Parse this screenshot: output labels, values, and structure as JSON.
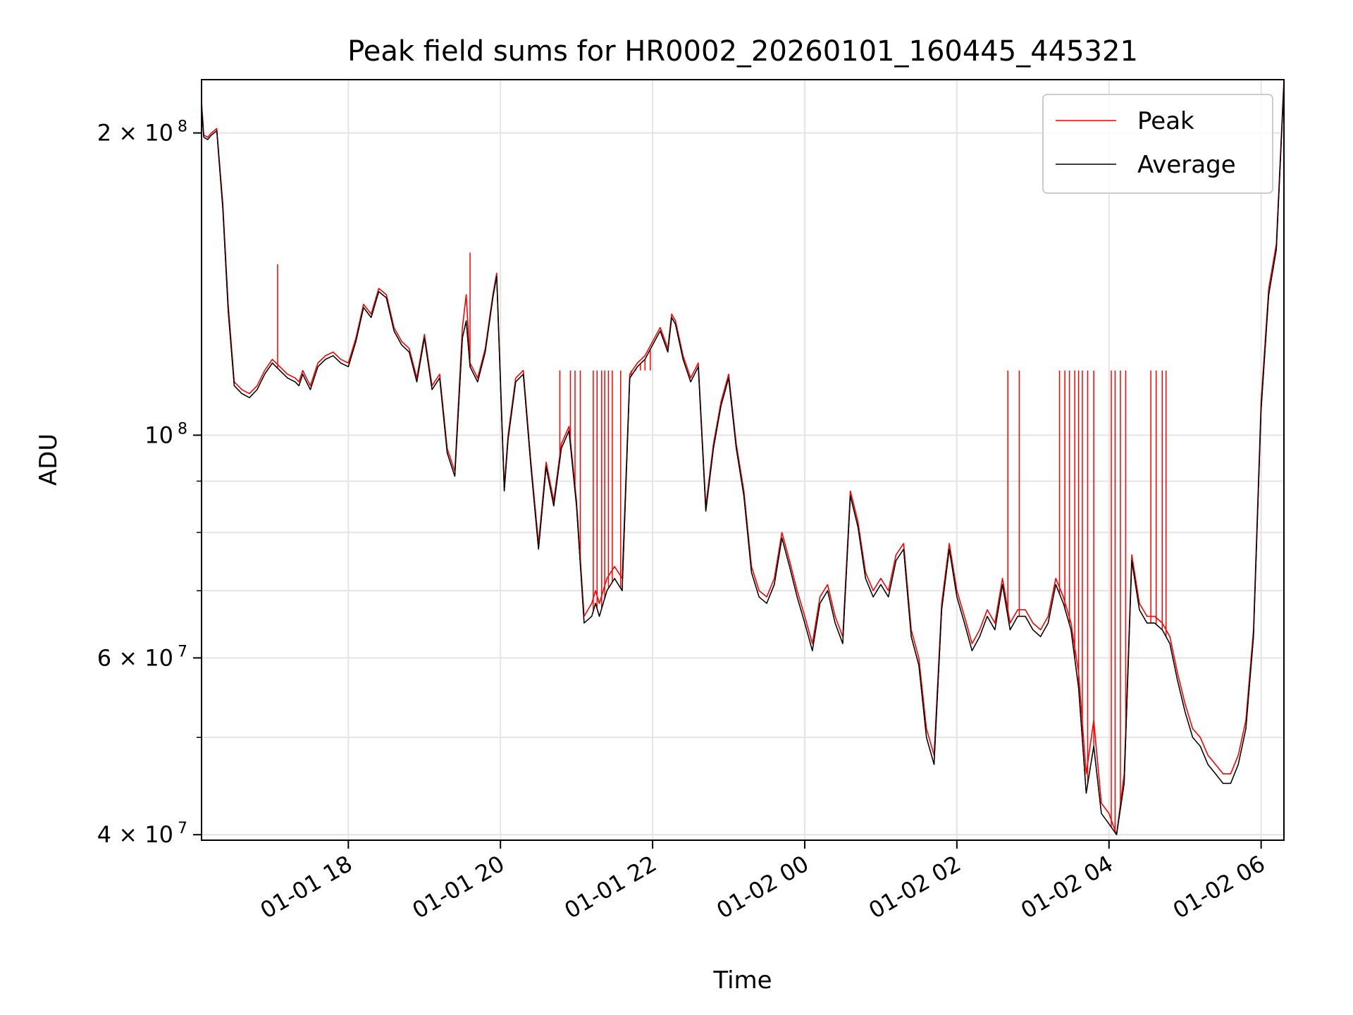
{
  "chart_data": {
    "type": "line",
    "title": "Peak field sums for HR0002_20260101_160445_445321",
    "xlabel": "Time",
    "ylabel": "ADU",
    "yscale": "log",
    "ylim": [
      39500000,
      226000000
    ],
    "xlim_hours": [
      16.07,
      30.3
    ],
    "grid": true,
    "legend_position": "upper-right",
    "x_ticks": [
      {
        "hour": 18,
        "label": "01-01 18"
      },
      {
        "hour": 20,
        "label": "01-01 20"
      },
      {
        "hour": 22,
        "label": "01-01 22"
      },
      {
        "hour": 24,
        "label": "01-02 00"
      },
      {
        "hour": 26,
        "label": "01-02 02"
      },
      {
        "hour": 28,
        "label": "01-02 04"
      },
      {
        "hour": 30,
        "label": "01-02 06"
      }
    ],
    "y_major_ticks": [
      {
        "value": 200000000,
        "base": "2 × 10",
        "exp": "8"
      },
      {
        "value": 100000000,
        "base": "10",
        "exp": "8"
      },
      {
        "value": 60000000,
        "base": "6 × 10",
        "exp": "7"
      },
      {
        "value": 40000000,
        "base": "4 × 10",
        "exp": "7"
      }
    ],
    "y_minor_ticks": [
      50000000,
      70000000,
      80000000,
      90000000
    ],
    "series": [
      {
        "name": "Peak",
        "color": "#ff0000",
        "x": [
          16.07,
          16.1,
          16.15,
          16.2,
          16.27,
          16.35,
          16.42,
          16.5,
          16.6,
          16.7,
          16.8,
          16.9,
          17.0,
          17.1,
          17.2,
          17.3,
          17.35,
          17.4,
          17.5,
          17.6,
          17.7,
          17.8,
          17.9,
          18.0,
          18.1,
          18.2,
          18.3,
          18.4,
          18.5,
          18.6,
          18.7,
          18.8,
          18.9,
          19.0,
          19.1,
          19.2,
          19.3,
          19.4,
          19.5,
          19.55,
          19.6,
          19.7,
          19.8,
          19.9,
          19.95,
          20.05,
          20.1,
          20.2,
          20.3,
          20.4,
          20.5,
          20.6,
          20.7,
          20.8,
          20.9,
          21.0,
          21.1,
          21.2,
          21.25,
          21.3,
          21.4,
          21.5,
          21.6,
          21.7,
          21.8,
          21.9,
          22.0,
          22.1,
          22.2,
          22.25,
          22.3,
          22.4,
          22.5,
          22.6,
          22.7,
          22.8,
          22.9,
          23.0,
          23.1,
          23.2,
          23.3,
          23.4,
          23.5,
          23.6,
          23.7,
          23.8,
          23.9,
          24.0,
          24.1,
          24.2,
          24.3,
          24.4,
          24.5,
          24.6,
          24.7,
          24.8,
          24.9,
          25.0,
          25.1,
          25.2,
          25.3,
          25.4,
          25.5,
          25.6,
          25.7,
          25.8,
          25.9,
          26.0,
          26.1,
          26.2,
          26.3,
          26.4,
          26.5,
          26.6,
          26.7,
          26.8,
          26.9,
          27.0,
          27.1,
          27.2,
          27.3,
          27.4,
          27.5,
          27.6,
          27.7,
          27.8,
          27.9,
          28.0,
          28.1,
          28.2,
          28.3,
          28.4,
          28.5,
          28.6,
          28.7,
          28.8,
          28.9,
          29.0,
          29.1,
          29.2,
          29.3,
          29.4,
          29.5,
          29.6,
          29.7,
          29.8,
          29.9,
          30.0,
          30.1,
          30.2,
          30.3
        ],
        "y": [
          215000000,
          199000000,
          198000000,
          200000000,
          202000000,
          170000000,
          135000000,
          113000000,
          111000000,
          110000000,
          112000000,
          116000000,
          119000000,
          117000000,
          115000000,
          114000000,
          113000000,
          116000000,
          112000000,
          118000000,
          120000000,
          121000000,
          119000000,
          118000000,
          125000000,
          135000000,
          132000000,
          140000000,
          138000000,
          128000000,
          124000000,
          122000000,
          114000000,
          126000000,
          112000000,
          115000000,
          97000000,
          92000000,
          128000000,
          138000000,
          118000000,
          114000000,
          122000000,
          138000000,
          145000000,
          89000000,
          100000000,
          114000000,
          116000000,
          94000000,
          78000000,
          94000000,
          86000000,
          98000000,
          102000000,
          86000000,
          66000000,
          68000000,
          70000000,
          68000000,
          72000000,
          74000000,
          72000000,
          115000000,
          118000000,
          120000000,
          124000000,
          128000000,
          122000000,
          132000000,
          130000000,
          120000000,
          114000000,
          118000000,
          85000000,
          98000000,
          108000000,
          115000000,
          98000000,
          88000000,
          74000000,
          70000000,
          69000000,
          72000000,
          80000000,
          75000000,
          70000000,
          66000000,
          62000000,
          69000000,
          71000000,
          66000000,
          63000000,
          88000000,
          82000000,
          73000000,
          70000000,
          72000000,
          70000000,
          76000000,
          78000000,
          64000000,
          60000000,
          51000000,
          48000000,
          68000000,
          78000000,
          70000000,
          66000000,
          62000000,
          64000000,
          67000000,
          65000000,
          72000000,
          65000000,
          67000000,
          67000000,
          65000000,
          64000000,
          66000000,
          72000000,
          69000000,
          65000000,
          58000000,
          46000000,
          52000000,
          43000000,
          42000000,
          40000000,
          46000000,
          76000000,
          68000000,
          66000000,
          66000000,
          65000000,
          63000000,
          58000000,
          54000000,
          51000000,
          50000000,
          48000000,
          47000000,
          46000000,
          46000000,
          48000000,
          52000000,
          64000000,
          108000000,
          140000000,
          155000000,
          226000000
        ]
      },
      {
        "name": "Average",
        "color": "#000000",
        "x": [
          16.07,
          16.1,
          16.15,
          16.2,
          16.27,
          16.35,
          16.42,
          16.5,
          16.6,
          16.7,
          16.8,
          16.9,
          17.0,
          17.1,
          17.2,
          17.3,
          17.35,
          17.4,
          17.5,
          17.6,
          17.7,
          17.8,
          17.9,
          18.0,
          18.1,
          18.2,
          18.3,
          18.4,
          18.5,
          18.6,
          18.7,
          18.8,
          18.9,
          19.0,
          19.1,
          19.2,
          19.3,
          19.4,
          19.5,
          19.55,
          19.6,
          19.7,
          19.8,
          19.9,
          19.95,
          20.05,
          20.1,
          20.2,
          20.3,
          20.4,
          20.5,
          20.6,
          20.7,
          20.8,
          20.9,
          21.0,
          21.1,
          21.2,
          21.25,
          21.3,
          21.4,
          21.5,
          21.6,
          21.7,
          21.8,
          21.9,
          22.0,
          22.1,
          22.2,
          22.25,
          22.3,
          22.4,
          22.5,
          22.6,
          22.7,
          22.8,
          22.9,
          23.0,
          23.1,
          23.2,
          23.3,
          23.4,
          23.5,
          23.6,
          23.7,
          23.8,
          23.9,
          24.0,
          24.1,
          24.2,
          24.3,
          24.4,
          24.5,
          24.6,
          24.7,
          24.8,
          24.9,
          25.0,
          25.1,
          25.2,
          25.3,
          25.4,
          25.5,
          25.6,
          25.7,
          25.8,
          25.9,
          26.0,
          26.1,
          26.2,
          26.3,
          26.4,
          26.5,
          26.6,
          26.7,
          26.8,
          26.9,
          27.0,
          27.1,
          27.2,
          27.3,
          27.4,
          27.5,
          27.6,
          27.7,
          27.8,
          27.9,
          28.0,
          28.1,
          28.2,
          28.3,
          28.4,
          28.5,
          28.6,
          28.7,
          28.8,
          28.9,
          29.0,
          29.1,
          29.2,
          29.3,
          29.4,
          29.5,
          29.6,
          29.7,
          29.8,
          29.9,
          30.0,
          30.1,
          30.2,
          30.3
        ],
        "y": [
          212000000,
          198000000,
          197000000,
          199000000,
          201000000,
          168000000,
          133000000,
          112000000,
          110000000,
          109000000,
          111000000,
          115000000,
          118000000,
          116000000,
          114000000,
          113000000,
          112000000,
          115000000,
          111000000,
          117000000,
          119000000,
          120000000,
          118000000,
          117000000,
          124000000,
          134000000,
          131000000,
          139000000,
          137000000,
          127000000,
          123000000,
          121000000,
          113000000,
          125000000,
          111000000,
          114000000,
          96000000,
          91000000,
          125000000,
          130000000,
          117000000,
          113000000,
          121000000,
          137000000,
          144000000,
          88000000,
          99000000,
          113000000,
          115000000,
          93000000,
          77000000,
          93000000,
          85000000,
          97000000,
          101000000,
          85000000,
          65000000,
          66000000,
          68000000,
          66000000,
          70000000,
          72000000,
          70000000,
          114000000,
          117000000,
          119000000,
          123000000,
          127000000,
          121000000,
          131000000,
          129000000,
          119000000,
          113000000,
          117000000,
          84000000,
          97000000,
          107000000,
          114000000,
          97000000,
          87000000,
          73000000,
          69000000,
          68000000,
          71000000,
          79000000,
          74000000,
          69000000,
          65000000,
          61000000,
          68000000,
          70000000,
          65000000,
          62000000,
          87000000,
          81000000,
          72000000,
          69000000,
          71000000,
          69000000,
          75000000,
          77000000,
          63000000,
          59000000,
          50000000,
          47000000,
          67000000,
          77000000,
          69000000,
          65000000,
          61000000,
          63000000,
          66000000,
          64000000,
          71000000,
          64000000,
          66000000,
          66000000,
          64000000,
          63000000,
          65000000,
          71000000,
          68000000,
          64000000,
          56000000,
          44000000,
          49000000,
          42000000,
          41000000,
          40000000,
          45000000,
          75000000,
          67000000,
          65000000,
          65000000,
          64000000,
          62000000,
          57000000,
          53000000,
          50000000,
          49000000,
          47000000,
          46000000,
          45000000,
          45000000,
          47000000,
          51000000,
          63000000,
          106000000,
          138000000,
          153000000,
          224000000
        ]
      }
    ],
    "peak_spikes": [
      {
        "x": 17.07,
        "to": 148000000
      },
      {
        "x": 19.6,
        "to": 152000000
      },
      {
        "x": 20.78,
        "to": 116000000
      },
      {
        "x": 20.92,
        "to": 116000000
      },
      {
        "x": 20.98,
        "to": 116000000
      },
      {
        "x": 21.05,
        "to": 116000000
      },
      {
        "x": 21.22,
        "to": 116000000
      },
      {
        "x": 21.27,
        "to": 116000000
      },
      {
        "x": 21.33,
        "to": 116000000
      },
      {
        "x": 21.37,
        "to": 116000000
      },
      {
        "x": 21.42,
        "to": 116000000
      },
      {
        "x": 21.47,
        "to": 116000000
      },
      {
        "x": 21.58,
        "to": 116000000
      },
      {
        "x": 21.72,
        "to": 116000000
      },
      {
        "x": 21.78,
        "to": 116000000
      },
      {
        "x": 21.84,
        "to": 116000000
      },
      {
        "x": 21.9,
        "to": 116000000
      },
      {
        "x": 21.97,
        "to": 116000000
      },
      {
        "x": 26.67,
        "to": 116000000
      },
      {
        "x": 26.82,
        "to": 116000000
      },
      {
        "x": 27.35,
        "to": 116000000
      },
      {
        "x": 27.42,
        "to": 116000000
      },
      {
        "x": 27.48,
        "to": 116000000
      },
      {
        "x": 27.55,
        "to": 116000000
      },
      {
        "x": 27.6,
        "to": 116000000
      },
      {
        "x": 27.65,
        "to": 116000000
      },
      {
        "x": 27.72,
        "to": 116000000
      },
      {
        "x": 27.8,
        "to": 116000000
      },
      {
        "x": 28.03,
        "to": 116000000
      },
      {
        "x": 28.08,
        "to": 116000000
      },
      {
        "x": 28.15,
        "to": 116000000
      },
      {
        "x": 28.22,
        "to": 116000000
      },
      {
        "x": 28.55,
        "to": 116000000
      },
      {
        "x": 28.62,
        "to": 116000000
      },
      {
        "x": 28.7,
        "to": 116000000
      },
      {
        "x": 28.75,
        "to": 116000000
      }
    ]
  }
}
